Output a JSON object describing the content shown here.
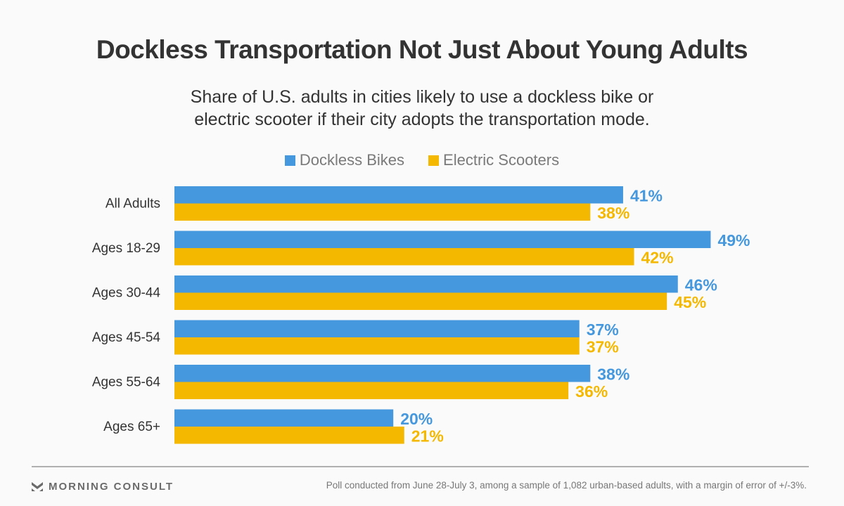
{
  "chart_data": {
    "type": "bar",
    "orientation": "horizontal",
    "title": "Dockless Transportation Not Just About Young Adults",
    "subtitle_lines": [
      "Share of U.S. adults in cities likely to use a dockless bike or",
      "electric scooter if their city adopts the transportation mode."
    ],
    "categories": [
      "All Adults",
      "Ages 18-29",
      "Ages 30-44",
      "Ages 45-54",
      "Ages 55-64",
      "Ages 65+"
    ],
    "series": [
      {
        "name": "Dockless Bikes",
        "color": "#4598dd",
        "values": [
          41,
          49,
          46,
          37,
          38,
          20
        ]
      },
      {
        "name": "Electric Scooters",
        "color": "#f5b800",
        "values": [
          38,
          42,
          45,
          37,
          36,
          21
        ]
      }
    ],
    "value_suffix": "%",
    "xlim": [
      0,
      60
    ],
    "grid": false,
    "legend_position": "top-center",
    "xlabel": "",
    "ylabel": ""
  },
  "footer": {
    "brand": "MORNING CONSULT",
    "note": "Poll conducted from June 28-July 3, among a sample of 1,082 urban-based adults, with a margin of error of +/-3%."
  }
}
